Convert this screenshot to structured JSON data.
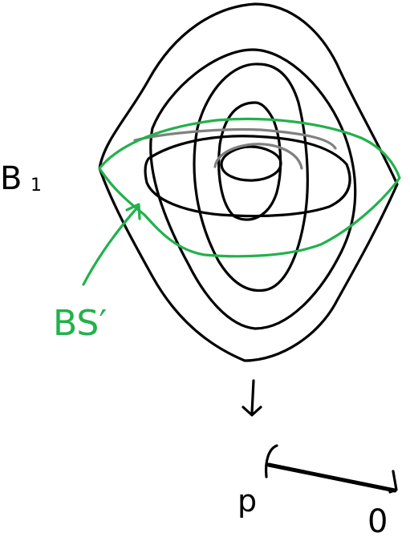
{
  "labels": {
    "b1": "B",
    "b1_subscript": "1",
    "bs_prime": "BS′",
    "p": "p",
    "zero": "0"
  },
  "colors": {
    "contour": "#000000",
    "gray_contour": "#808080",
    "green_outline": "#22b14c"
  },
  "icons": {
    "down_arrow": "down-arrow-icon"
  }
}
